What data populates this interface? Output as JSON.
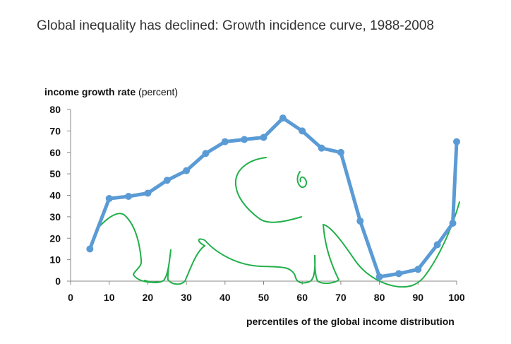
{
  "page": {
    "title": "Global inequality has declined: Growth incidence curve, 1988-2008"
  },
  "chart_data": {
    "type": "line",
    "title": "Global inequality has declined: Growth incidence curve, 1988-2008",
    "ylabel_bold": "income growth rate",
    "ylabel_normal": " (percent)",
    "xlabel": "percentiles of the global income distribution",
    "xlim": [
      0,
      100
    ],
    "ylim": [
      0,
      80
    ],
    "x_ticks": [
      0,
      10,
      20,
      30,
      40,
      50,
      60,
      70,
      80,
      90,
      100
    ],
    "y_ticks": [
      0,
      10,
      20,
      30,
      40,
      50,
      60,
      70,
      80
    ],
    "grid": false,
    "series": [
      {
        "color": "#5b9bd5",
        "x": [
          5,
          10,
          15,
          20,
          25,
          30,
          35,
          40,
          45,
          50,
          55,
          60,
          65,
          70,
          75,
          80,
          85,
          90,
          95,
          99,
          100
        ],
        "y": [
          15,
          38.5,
          39.5,
          41,
          47,
          51.5,
          59.5,
          65,
          66,
          67,
          76,
          70,
          62,
          60,
          28,
          2,
          3.5,
          5.5,
          17,
          27,
          65
        ]
      }
    ],
    "annotation": {
      "type": "hand-drawn elephant outline",
      "color": "#22b04a"
    }
  }
}
